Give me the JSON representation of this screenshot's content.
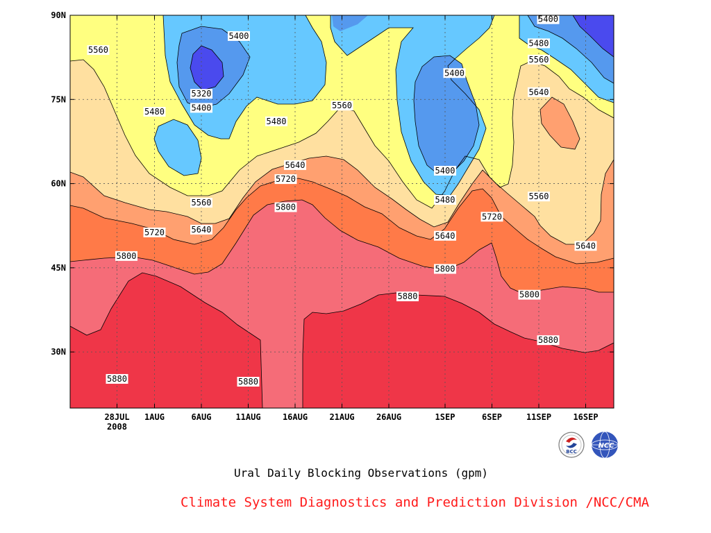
{
  "colors": {
    "background": "#ffffff",
    "credit_text": "#ff1a1a",
    "bands": {
      "5320": "#4a4aee",
      "5400": "#5599ee",
      "5480": "#66c8ff",
      "5560": "#ffff80",
      "5640": "#ffe0a0",
      "5720": "#ffa070",
      "5800": "#ff7a48",
      "5880": "#f56c78",
      "above": "#ef3648"
    }
  },
  "chart_data": {
    "type": "contour",
    "title": "Ural Daily Blocking Observations (gpm)",
    "variable_unit": "gpm",
    "x_axis": {
      "type": "date",
      "range": [
        "2008-07-23",
        "2008-09-19"
      ],
      "ticks": [
        "2008-07-28",
        "2008-08-01",
        "2008-08-06",
        "2008-08-11",
        "2008-08-16",
        "2008-08-21",
        "2008-08-26",
        "2008-09-01",
        "2008-09-06",
        "2008-09-11",
        "2008-09-16"
      ],
      "tick_labels": [
        "28JUL",
        "1AUG",
        "6AUG",
        "11AUG",
        "16AUG",
        "21AUG",
        "26AUG",
        "1SEP",
        "6SEP",
        "11SEP",
        "16SEP"
      ],
      "year_label": "2008"
    },
    "y_axis": {
      "range": [
        20,
        90
      ],
      "ticks": [
        30,
        45,
        60,
        75,
        90
      ],
      "tick_labels": [
        "30N",
        "45N",
        "60N",
        "75N",
        "90N"
      ]
    },
    "grid": true,
    "contour_levels": [
      5320,
      5400,
      5480,
      5560,
      5640,
      5720,
      5800,
      5880
    ],
    "contour_labels": [
      {
        "text": "5400",
        "date": "2008-08-10",
        "lat": 86.3
      },
      {
        "text": "5320",
        "date": "2008-08-06",
        "lat": 76.0
      },
      {
        "text": "5400",
        "date": "2008-08-06",
        "lat": 73.5
      },
      {
        "text": "5560",
        "date": "2008-07-26",
        "lat": 83.8
      },
      {
        "text": "5480",
        "date": "2008-08-01",
        "lat": 72.8
      },
      {
        "text": "5480",
        "date": "2008-08-14",
        "lat": 71.1
      },
      {
        "text": "5560",
        "date": "2008-08-21",
        "lat": 73.9
      },
      {
        "text": "5640",
        "date": "2008-08-16",
        "lat": 63.3
      },
      {
        "text": "5720",
        "date": "2008-08-15",
        "lat": 60.8
      },
      {
        "text": "5800",
        "date": "2008-08-15",
        "lat": 55.8
      },
      {
        "text": "5560",
        "date": "2008-08-06",
        "lat": 56.6
      },
      {
        "text": "5640",
        "date": "2008-08-06",
        "lat": 51.8
      },
      {
        "text": "5720",
        "date": "2008-08-01",
        "lat": 51.3
      },
      {
        "text": "5800",
        "date": "2008-07-29",
        "lat": 47.1
      },
      {
        "text": "5880",
        "date": "2008-07-28",
        "lat": 25.2
      },
      {
        "text": "5880",
        "date": "2008-08-11",
        "lat": 24.7
      },
      {
        "text": "5880",
        "date": "2008-08-28",
        "lat": 39.9
      },
      {
        "text": "5400",
        "date": "2008-09-02",
        "lat": 79.7
      },
      {
        "text": "5400",
        "date": "2008-09-01",
        "lat": 62.3
      },
      {
        "text": "5480",
        "date": "2008-09-01",
        "lat": 57.1
      },
      {
        "text": "5640",
        "date": "2008-09-01",
        "lat": 50.7
      },
      {
        "text": "5800",
        "date": "2008-09-01",
        "lat": 44.8
      },
      {
        "text": "5720",
        "date": "2008-09-06",
        "lat": 54.1
      },
      {
        "text": "5560",
        "date": "2008-09-11",
        "lat": 57.7
      },
      {
        "text": "5800",
        "date": "2008-09-10",
        "lat": 40.2
      },
      {
        "text": "5880",
        "date": "2008-09-12",
        "lat": 32.1
      },
      {
        "text": "5640",
        "date": "2008-09-16",
        "lat": 48.9
      },
      {
        "text": "5640",
        "date": "2008-09-11",
        "lat": 76.3
      },
      {
        "text": "5560",
        "date": "2008-09-11",
        "lat": 82.1
      },
      {
        "text": "5480",
        "date": "2008-09-11",
        "lat": 85.0
      },
      {
        "text": "5400",
        "date": "2008-09-12",
        "lat": 89.3
      }
    ]
  },
  "credit": "Climate System Diagnostics and Prediction Division /NCC/CMA",
  "logos": [
    {
      "name": "bcc-logo",
      "text": "BCC"
    },
    {
      "name": "ncc-logo",
      "text": "NCC"
    }
  ]
}
